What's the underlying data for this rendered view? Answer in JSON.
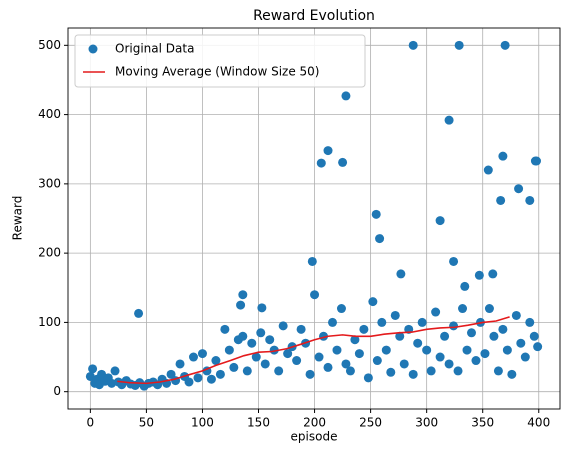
{
  "chart_data": {
    "type": "scatter",
    "title": "Reward Evolution",
    "x_label": "episode",
    "y_label": "Reward",
    "xlim": [
      -19.95,
      418.95
    ],
    "ylim": [
      -25,
      525
    ],
    "xticks": [
      0,
      50,
      100,
      150,
      200,
      250,
      300,
      350,
      400
    ],
    "yticks": [
      0,
      100,
      200,
      300,
      400,
      500
    ],
    "grid": true,
    "legend": "upper left",
    "series": [
      {
        "name": "Original Data",
        "type": "scatter",
        "color": "#1f77b4",
        "x": [
          0,
          2,
          4,
          6,
          8,
          10,
          13,
          16,
          19,
          22,
          25,
          28,
          32,
          36,
          40,
          44,
          48,
          52,
          56,
          60,
          64,
          68,
          72,
          76,
          80,
          84,
          88,
          92,
          96,
          100,
          104,
          108,
          112,
          116,
          120,
          124,
          128,
          132,
          136,
          140,
          144,
          148,
          152,
          156,
          160,
          164,
          168,
          172,
          176,
          180,
          184,
          188,
          192,
          196,
          200,
          204,
          208,
          212,
          216,
          220,
          224,
          228,
          232,
          236,
          240,
          244,
          248,
          252,
          256,
          260,
          264,
          268,
          272,
          276,
          280,
          284,
          288,
          292,
          296,
          300,
          304,
          308,
          312,
          316,
          320,
          324,
          328,
          332,
          336,
          340,
          344,
          348,
          352,
          356,
          360,
          364,
          368,
          372,
          376,
          380,
          384,
          388,
          392,
          396,
          399,
          43,
          134,
          136,
          153,
          198,
          206,
          212,
          225,
          228,
          255,
          258,
          277,
          288,
          312,
          320,
          324,
          329,
          334,
          347,
          355,
          359,
          366,
          368,
          370,
          382,
          392,
          397,
          398
        ],
        "values": [
          22,
          33,
          12,
          18,
          10,
          25,
          15,
          20,
          12,
          30,
          14,
          10,
          16,
          11,
          9,
          13,
          8,
          12,
          14,
          10,
          18,
          12,
          25,
          16,
          40,
          22,
          14,
          50,
          20,
          55,
          30,
          18,
          45,
          25,
          90,
          60,
          35,
          75,
          80,
          30,
          70,
          50,
          85,
          40,
          75,
          60,
          30,
          95,
          55,
          65,
          45,
          90,
          70,
          25,
          140,
          50,
          80,
          35,
          100,
          60,
          120,
          40,
          30,
          75,
          55,
          90,
          20,
          130,
          45,
          100,
          60,
          28,
          110,
          80,
          40,
          90,
          25,
          70,
          100,
          60,
          30,
          115,
          50,
          80,
          40,
          95,
          30,
          120,
          60,
          85,
          45,
          100,
          55,
          120,
          80,
          30,
          90,
          60,
          25,
          110,
          70,
          50,
          100,
          80,
          65,
          113,
          125,
          140,
          121,
          188,
          330,
          348,
          331,
          427,
          256,
          221,
          170,
          500,
          247,
          392,
          188,
          500,
          152,
          168,
          320,
          170,
          276,
          340,
          500,
          293,
          276,
          333,
          333
        ]
      },
      {
        "name": "Moving Average (Window Size 50)",
        "type": "line",
        "color": "#e41a1c",
        "x": [
          24,
          35,
          50,
          62,
          75,
          87,
          100,
          112,
          125,
          137,
          150,
          162,
          175,
          187,
          200,
          212,
          225,
          237,
          250,
          262,
          275,
          287,
          300,
          312,
          325,
          337,
          350,
          362,
          374
        ],
        "values": [
          15,
          13,
          12,
          14,
          18,
          24,
          30,
          38,
          45,
          52,
          57,
          58,
          62,
          68,
          75,
          80,
          82,
          80,
          80,
          83,
          85,
          86,
          90,
          92,
          93,
          96,
          100,
          102,
          108
        ]
      }
    ]
  }
}
